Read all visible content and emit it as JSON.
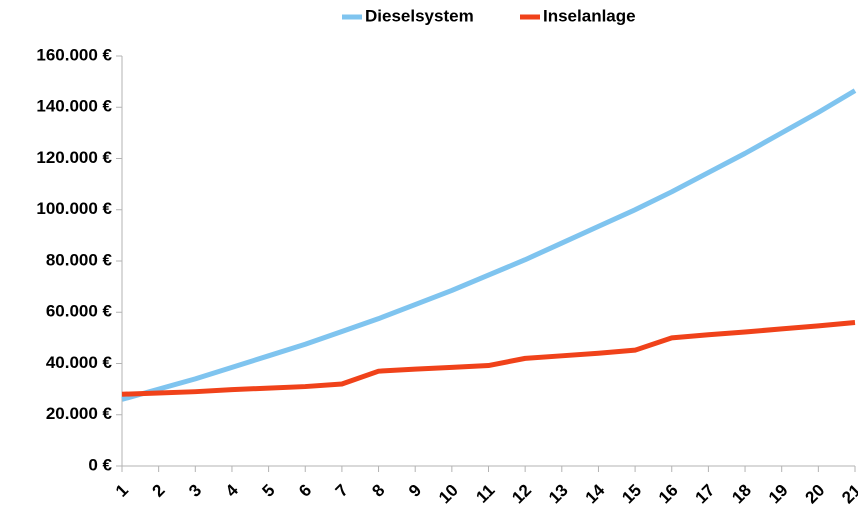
{
  "chart_data": {
    "type": "line",
    "categories": [
      "1",
      "2",
      "3",
      "4",
      "5",
      "6",
      "7",
      "8",
      "9",
      "10",
      "11",
      "12",
      "13",
      "14",
      "15",
      "16",
      "17",
      "18",
      "19",
      "20",
      "21"
    ],
    "series": [
      {
        "name": "Dieselsystem",
        "color": "#7fc4ef",
        "values": [
          26000,
          30000,
          34000,
          38500,
          43000,
          47500,
          52500,
          57500,
          63000,
          68500,
          74500,
          80500,
          87000,
          93500,
          100000,
          107000,
          114500,
          122000,
          130000,
          138000,
          146500
        ]
      },
      {
        "name": "Inselanlage",
        "color": "#f0421a",
        "values": [
          28000,
          28500,
          29000,
          29800,
          30400,
          31000,
          32000,
          37000,
          37800,
          38500,
          39200,
          42000,
          43000,
          44000,
          45200,
          50000,
          51200,
          52300,
          53500,
          54700,
          56000
        ]
      }
    ],
    "ylim": [
      0,
      160000
    ],
    "yticks": [
      {
        "value": 0,
        "label": "0 €"
      },
      {
        "value": 20000,
        "label": "20.000 €"
      },
      {
        "value": 40000,
        "label": "40.000 €"
      },
      {
        "value": 60000,
        "label": "60.000 €"
      },
      {
        "value": 80000,
        "label": "80.000 €"
      },
      {
        "value": 100000,
        "label": "100.000 €"
      },
      {
        "value": 120000,
        "label": "120.000 €"
      },
      {
        "value": 140000,
        "label": "140.000 €"
      },
      {
        "value": 160000,
        "label": "160.000 €"
      }
    ],
    "legend": "top",
    "grid": false
  }
}
